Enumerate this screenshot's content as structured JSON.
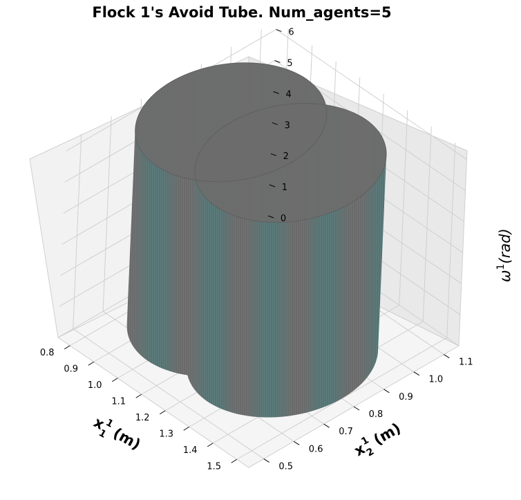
{
  "chart_data": {
    "type": "surface-3d",
    "title": "Flock 1's Avoid Tube. Num_agents=5",
    "xlabel": "x₁¹ (m)",
    "ylabel": "x₂¹ (m)",
    "zlabel": "ω¹(rad)",
    "x_ticks": [
      "0.8",
      "0.9",
      "1.0",
      "1.1",
      "1.2",
      "1.3",
      "1.4",
      "1.5"
    ],
    "y_ticks": [
      "0.5",
      "0.6",
      "0.7",
      "0.8",
      "0.9",
      "1.0",
      "1.1"
    ],
    "z_ticks": [
      "0",
      "1",
      "2",
      "3",
      "4",
      "5",
      "6"
    ],
    "xlim": [
      0.75,
      1.55
    ],
    "ylim": [
      0.45,
      1.15
    ],
    "zlim": [
      0,
      6.28
    ],
    "grid": true,
    "surface_color": "#6e6e6e",
    "mesh_color": "#20b2aa",
    "cylinders": [
      {
        "center_x": 1.0,
        "center_y": 0.8,
        "radius": 0.25,
        "z_min": 0,
        "z_max": 6.28
      },
      {
        "center_x": 1.25,
        "center_y": 0.8,
        "radius": 0.25,
        "z_min": 0,
        "z_max": 6.28
      }
    ]
  }
}
